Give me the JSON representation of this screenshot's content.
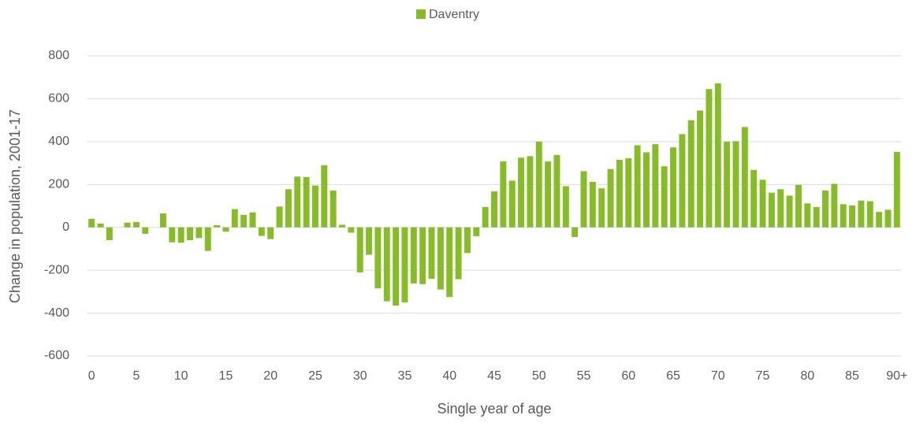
{
  "chart_data": {
    "type": "bar",
    "series": [
      {
        "name": "Daventry",
        "color": "#86bc25",
        "values": [
          40,
          18,
          -60,
          0,
          22,
          25,
          -30,
          0,
          65,
          -70,
          -72,
          -60,
          -50,
          -110,
          10,
          -20,
          85,
          58,
          70,
          -40,
          -55,
          97,
          178,
          237,
          235,
          195,
          290,
          172,
          12,
          -25,
          -210,
          -128,
          -285,
          -345,
          -365,
          -350,
          -262,
          -265,
          -240,
          -290,
          -325,
          -242,
          -120,
          -42,
          95,
          168,
          308,
          218,
          325,
          332,
          400,
          307,
          338,
          192,
          -45,
          262,
          212,
          182,
          272,
          315,
          322,
          383,
          350,
          388,
          285,
          373,
          435,
          500,
          545,
          645,
          672,
          400,
          402,
          468,
          268,
          222,
          162,
          178,
          148,
          198,
          112,
          95,
          172,
          203,
          108,
          102,
          125,
          122,
          72,
          82,
          352
        ]
      }
    ],
    "categories": [
      "0",
      null,
      null,
      null,
      null,
      "5",
      null,
      null,
      null,
      null,
      "10",
      null,
      null,
      null,
      null,
      "15",
      null,
      null,
      null,
      null,
      "20",
      null,
      null,
      null,
      null,
      "25",
      null,
      null,
      null,
      null,
      "30",
      null,
      null,
      null,
      null,
      "35",
      null,
      null,
      null,
      null,
      "40",
      null,
      null,
      null,
      null,
      "45",
      null,
      null,
      null,
      null,
      "50",
      null,
      null,
      null,
      null,
      "55",
      null,
      null,
      null,
      null,
      "60",
      null,
      null,
      null,
      null,
      "65",
      null,
      null,
      null,
      null,
      "70",
      null,
      null,
      null,
      null,
      "75",
      null,
      null,
      null,
      null,
      "80",
      null,
      null,
      null,
      null,
      "85",
      null,
      null,
      null,
      null,
      "90+"
    ],
    "ylim": [
      -600,
      800
    ],
    "yticks": [
      -600,
      -400,
      -200,
      0,
      200,
      400,
      600,
      800
    ],
    "grid": true,
    "xlabel": "Single year of age",
    "ylabel": "Change in population, 2001-17",
    "legend": "top"
  }
}
